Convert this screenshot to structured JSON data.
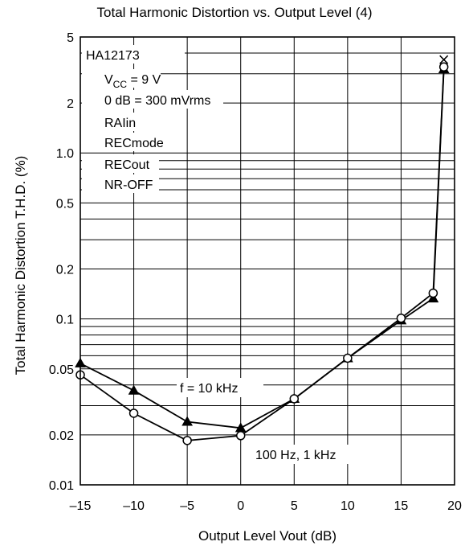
{
  "chart_data": {
    "type": "line",
    "title": "Total Harmonic Distortion vs. Output Level (4)",
    "xlabel": "Output Level Vout (dB)",
    "ylabel": "Total Harmonic Distortion T.H.D. (%)",
    "xlim": [
      -15,
      20
    ],
    "ylim": [
      0.01,
      5
    ],
    "yscale": "log",
    "x_ticks": [
      "–15",
      "–10",
      "–5",
      "0",
      "5",
      "10",
      "15",
      "20"
    ],
    "y_ticks": [
      {
        "value": 0.01,
        "label": "0.01"
      },
      {
        "value": 0.02,
        "label": "0.02"
      },
      {
        "value": 0.05,
        "label": "0.05"
      },
      {
        "value": 0.1,
        "label": "0.1"
      },
      {
        "value": 0.2,
        "label": "0.2"
      },
      {
        "value": 0.5,
        "label": "0.5"
      },
      {
        "value": 1.0,
        "label": "1.0"
      },
      {
        "value": 2,
        "label": "2"
      },
      {
        "value": 5,
        "label": "5"
      }
    ],
    "grid": true,
    "conditions": [
      {
        "text": "HA12173"
      },
      {
        "text": "V",
        "sub": "CC",
        "rest": " = 9 V"
      },
      {
        "text": "0 dB = 300 mVrms"
      },
      {
        "text": "RAIin"
      },
      {
        "text": "RECmode"
      },
      {
        "text": "RECout"
      },
      {
        "text": "NR-OFF"
      }
    ],
    "series": [
      {
        "name": "f = 10 kHz",
        "marker": "filled-triangle",
        "x": [
          -15,
          -10,
          -5,
          0,
          5,
          10,
          15,
          18,
          19
        ],
        "y": [
          0.054,
          0.037,
          0.024,
          0.022,
          0.033,
          0.058,
          0.098,
          0.133,
          3.2
        ]
      },
      {
        "name": "100 Hz, 1 kHz",
        "marker": "open-circle",
        "x": [
          -15,
          -10,
          -5,
          0,
          5,
          10,
          15,
          18,
          19
        ],
        "y": [
          0.046,
          0.027,
          0.0185,
          0.0198,
          0.033,
          0.058,
          0.101,
          0.143,
          3.3
        ]
      }
    ],
    "cross_marker": {
      "x": 19,
      "y": 3.65
    }
  }
}
